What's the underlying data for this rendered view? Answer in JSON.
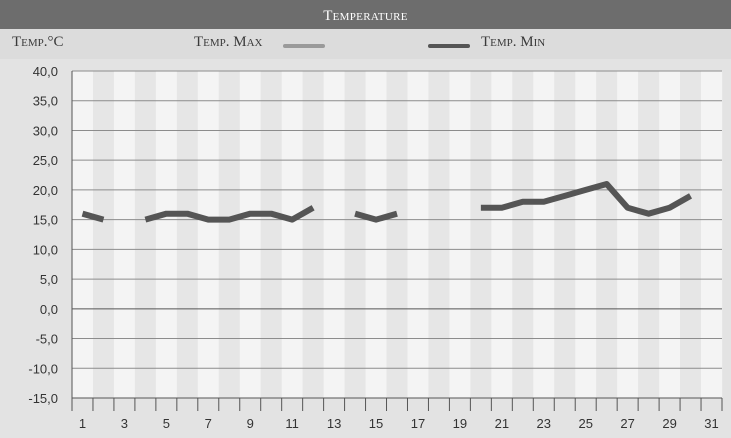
{
  "chart_data": {
    "type": "line",
    "title": "Temperature",
    "ylabel": "Temp.°C",
    "ylim": [
      -15,
      40
    ],
    "yticks": [
      40,
      35,
      30,
      25,
      20,
      15,
      10,
      5,
      0,
      -5,
      -10,
      -15
    ],
    "ytick_labels": [
      "40,0",
      "35,0",
      "30,0",
      "25,0",
      "20,0",
      "15,0",
      "10,0",
      "5,0",
      "0,0",
      "-5,0",
      "-10,0",
      "-15,0"
    ],
    "xlim": [
      1,
      31
    ],
    "xtick_labels": [
      "1",
      "3",
      "5",
      "7",
      "9",
      "11",
      "13",
      "15",
      "17",
      "19",
      "21",
      "23",
      "25",
      "27",
      "29",
      "31"
    ],
    "grid": true,
    "series": [
      {
        "name": "Temp. Max",
        "color": "#9a9a9a",
        "points": []
      },
      {
        "name": "Temp. Min",
        "color": "#555555",
        "points": [
          [
            1,
            16
          ],
          [
            2,
            15
          ],
          [
            4,
            15
          ],
          [
            5,
            16
          ],
          [
            6,
            16
          ],
          [
            7,
            15
          ],
          [
            8,
            15
          ],
          [
            9,
            16
          ],
          [
            10,
            16
          ],
          [
            11,
            15
          ],
          [
            12,
            17
          ],
          [
            14,
            16
          ],
          [
            15,
            15
          ],
          [
            16,
            16
          ],
          [
            20,
            17
          ],
          [
            21,
            17
          ],
          [
            22,
            18
          ],
          [
            23,
            18
          ],
          [
            24,
            19
          ],
          [
            25,
            20
          ],
          [
            26,
            21
          ],
          [
            27,
            17
          ],
          [
            28,
            16
          ],
          [
            29,
            17
          ],
          [
            30,
            19
          ]
        ],
        "segments": [
          [
            0,
            2
          ],
          [
            2,
            11
          ],
          [
            11,
            14
          ],
          [
            14,
            25
          ]
        ]
      }
    ]
  }
}
